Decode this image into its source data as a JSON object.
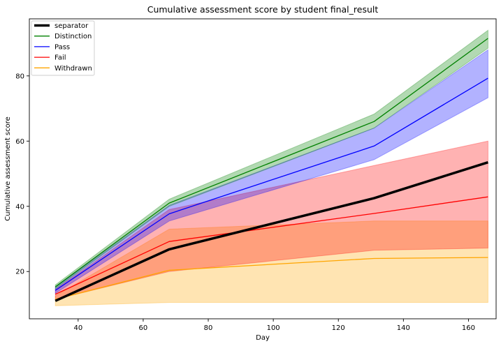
{
  "chart_data": {
    "type": "line",
    "title": "Cumulative assessment score by student final_result",
    "xlabel": "Day",
    "ylabel": "Cumulative assessment score",
    "xlim": [
      25,
      168.5
    ],
    "ylim": [
      5.5,
      97.5
    ],
    "xticks": [
      40,
      60,
      80,
      100,
      120,
      140,
      160
    ],
    "yticks": [
      20,
      40,
      60,
      80
    ],
    "grid": false,
    "legend_position": "top-left",
    "x": [
      33,
      68,
      131,
      166
    ],
    "series": [
      {
        "name": "separator",
        "color": "#000000",
        "width": 3.5,
        "values": [
          11.0,
          26.8,
          42.5,
          53.5
        ]
      },
      {
        "name": "Distinction",
        "color": "#008000",
        "width": 1.3,
        "values": [
          15.3,
          41.0,
          66.0,
          91.5
        ],
        "band": {
          "lower": [
            14.7,
            40.0,
            64.0,
            88.5
          ],
          "upper": [
            15.9,
            42.2,
            68.3,
            94.0
          ],
          "fill": "#008000",
          "opacity": 0.3
        }
      },
      {
        "name": "Pass",
        "color": "#0000ff",
        "width": 1.3,
        "values": [
          14.2,
          37.7,
          58.5,
          79.3
        ],
        "band": {
          "lower": [
            13.3,
            35.5,
            54.3,
            73.3
          ],
          "upper": [
            15.2,
            40.3,
            64.0,
            88.0
          ],
          "fill": "#0000ff",
          "opacity": 0.3
        }
      },
      {
        "name": "Fail",
        "color": "#ff0000",
        "width": 1.3,
        "values": [
          13.0,
          29.2,
          37.8,
          42.9
        ],
        "band": {
          "lower": [
            11.5,
            20.0,
            26.5,
            27.2
          ],
          "upper": [
            14.5,
            39.0,
            52.5,
            60.0
          ],
          "fill": "#ff0000",
          "opacity": 0.3
        }
      },
      {
        "name": "Withdrawn",
        "color": "#ffa500",
        "width": 1.3,
        "values": [
          11.5,
          20.4,
          24.0,
          24.3
        ],
        "band": {
          "lower": [
            9.5,
            10.5,
            10.5,
            10.5
          ],
          "upper": [
            12.5,
            33.0,
            35.5,
            35.5
          ],
          "fill": "#ffa500",
          "opacity": 0.3
        }
      }
    ]
  }
}
